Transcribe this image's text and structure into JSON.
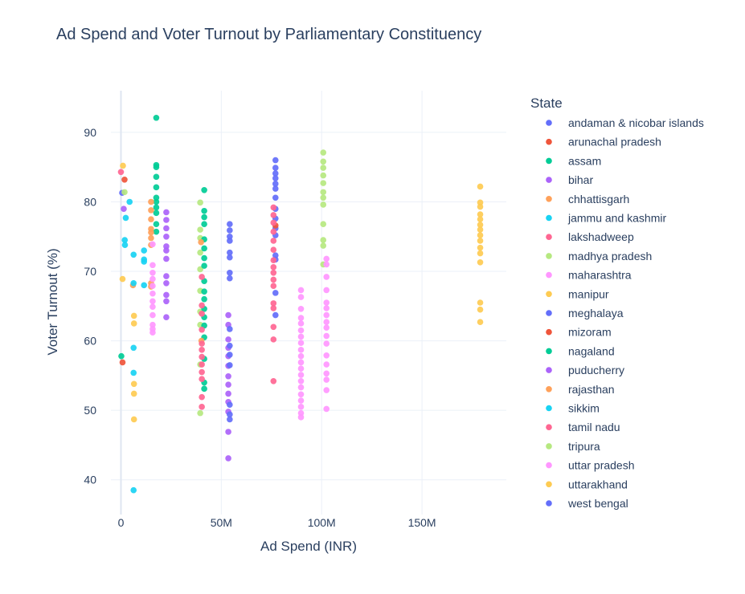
{
  "chart_data": {
    "type": "scatter",
    "title": "Ad Spend and Voter Turnout by Parliamentary Constituency",
    "xlabel": "Ad Spend (INR)",
    "ylabel": "Voter Turnout (%)",
    "xlim": [
      -5000000,
      192000000
    ],
    "ylim": [
      35,
      96
    ],
    "x_ticks": [
      {
        "value": 0,
        "label": "0"
      },
      {
        "value": 50000000,
        "label": "50M"
      },
      {
        "value": 100000000,
        "label": "100M"
      },
      {
        "value": 150000000,
        "label": "150M"
      }
    ],
    "y_ticks": [
      {
        "value": 40,
        "label": "40"
      },
      {
        "value": 50,
        "label": "50"
      },
      {
        "value": 60,
        "label": "60"
      },
      {
        "value": 70,
        "label": "70"
      },
      {
        "value": 80,
        "label": "80"
      },
      {
        "value": 90,
        "label": "90"
      }
    ],
    "grid": true,
    "legend_title": "State",
    "legend_position": "right",
    "series": [
      {
        "name": "andaman & nicobar islands",
        "color": "#636efa",
        "points": [
          [
            600000,
            81.3
          ]
        ]
      },
      {
        "name": "arunachal pradesh",
        "color": "#EF553B",
        "points": [
          [
            800000,
            56.9
          ],
          [
            1800000,
            83.2
          ]
        ]
      },
      {
        "name": "assam",
        "color": "#00cc96",
        "points": [
          [
            17600000,
            92.1
          ],
          [
            17600000,
            85.3
          ],
          [
            17600000,
            85.0
          ],
          [
            17600000,
            83.6
          ],
          [
            17600000,
            82.1
          ],
          [
            17600000,
            80.6
          ],
          [
            17600000,
            80.0
          ],
          [
            17600000,
            79.2
          ],
          [
            17600000,
            78.4
          ],
          [
            17600000,
            76.8
          ],
          [
            17600000,
            75.7
          ]
        ]
      },
      {
        "name": "bihar",
        "color": "#ab63fa",
        "points": [
          [
            1400000,
            79.0
          ],
          [
            22600000,
            78.5
          ],
          [
            22600000,
            77.4
          ],
          [
            22600000,
            76.2
          ],
          [
            22600000,
            75.0
          ],
          [
            22600000,
            73.6
          ],
          [
            22600000,
            73.0
          ],
          [
            22600000,
            71.8
          ],
          [
            22600000,
            69.3
          ],
          [
            22600000,
            68.3
          ],
          [
            22600000,
            66.6
          ],
          [
            22600000,
            65.7
          ],
          [
            22600000,
            63.4
          ]
        ]
      },
      {
        "name": "chhattisgarh",
        "color": "#FFA15A",
        "points": [
          [
            6000000,
            68.0
          ],
          [
            15000000,
            80.0
          ],
          [
            15000000,
            78.8
          ],
          [
            15000000,
            77.5
          ],
          [
            15000000,
            76.1
          ],
          [
            15000000,
            75.6
          ],
          [
            15000000,
            74.8
          ],
          [
            15000000,
            73.8
          ],
          [
            15000000,
            68.3
          ],
          [
            15000000,
            67.8
          ]
        ]
      },
      {
        "name": "jammu and kashmir",
        "color": "#19d3f3",
        "points": [
          [
            1900000,
            74.5
          ],
          [
            2400000,
            77.7
          ],
          [
            4300000,
            80.0
          ],
          [
            6300000,
            72.4
          ],
          [
            6300000,
            68.3
          ],
          [
            6300000,
            59.0
          ],
          [
            6300000,
            55.4
          ],
          [
            6300000,
            38.5
          ],
          [
            11500000,
            73.0
          ],
          [
            11500000,
            71.7
          ],
          [
            11500000,
            71.4
          ],
          [
            11500000,
            68.0
          ]
        ]
      },
      {
        "name": "lakshadweep",
        "color": "#FF6692",
        "points": [
          [
            0,
            84.3
          ]
        ]
      },
      {
        "name": "madhya pradesh",
        "color": "#B6E880",
        "points": [
          [
            1800000,
            81.4
          ],
          [
            39500000,
            79.9
          ],
          [
            39500000,
            76.0
          ],
          [
            39500000,
            74.8
          ],
          [
            39500000,
            72.7
          ],
          [
            39500000,
            70.3
          ],
          [
            39500000,
            67.2
          ],
          [
            39500000,
            64.2
          ],
          [
            39500000,
            62.3
          ],
          [
            39500000,
            56.6
          ],
          [
            39500000,
            49.6
          ]
        ]
      },
      {
        "name": "maharashtra",
        "color": "#FF97FF",
        "points": [
          [
            15800000,
            73.9
          ],
          [
            15800000,
            70.9
          ],
          [
            15800000,
            69.8
          ],
          [
            15800000,
            68.9
          ],
          [
            15800000,
            67.9
          ],
          [
            15800000,
            66.8
          ],
          [
            15800000,
            65.7
          ],
          [
            15800000,
            64.9
          ],
          [
            15800000,
            63.7
          ],
          [
            15800000,
            62.3
          ],
          [
            15800000,
            61.7
          ],
          [
            15800000,
            61.2
          ]
        ]
      },
      {
        "name": "manipur",
        "color": "#FECB52",
        "points": [
          [
            179000000,
            82.2
          ],
          [
            179000000,
            79.9
          ],
          [
            179000000,
            79.3
          ],
          [
            179000000,
            78.2
          ],
          [
            179000000,
            77.5
          ],
          [
            179000000,
            76.7
          ],
          [
            179000000,
            76.0
          ],
          [
            179000000,
            75.2
          ],
          [
            179000000,
            74.4
          ],
          [
            179000000,
            73.4
          ],
          [
            179000000,
            72.6
          ],
          [
            179000000,
            71.3
          ],
          [
            179000000,
            65.5
          ],
          [
            179000000,
            64.5
          ],
          [
            179000000,
            62.7
          ]
        ]
      },
      {
        "name": "meghalaya",
        "color": "#636efa",
        "points": [
          [
            77000000,
            86.0
          ],
          [
            77000000,
            84.9
          ],
          [
            77000000,
            84.1
          ],
          [
            77000000,
            83.4
          ],
          [
            77000000,
            82.6
          ],
          [
            77000000,
            81.9
          ],
          [
            77000000,
            80.6
          ],
          [
            77000000,
            79.0
          ],
          [
            77000000,
            77.6
          ],
          [
            77000000,
            76.2
          ],
          [
            77000000,
            75.2
          ],
          [
            77000000,
            72.3
          ],
          [
            77000000,
            71.7
          ],
          [
            77000000,
            66.9
          ],
          [
            77000000,
            63.7
          ]
        ]
      },
      {
        "name": "mizoram",
        "color": "#EF553B",
        "points": [
          [
            77000000,
            76.6
          ]
        ]
      },
      {
        "name": "nagaland",
        "color": "#00cc96",
        "points": [
          [
            200000,
            57.8
          ],
          [
            41500000,
            81.7
          ],
          [
            41500000,
            78.7
          ],
          [
            41500000,
            77.8
          ],
          [
            41500000,
            76.8
          ],
          [
            41500000,
            74.6
          ],
          [
            41500000,
            73.3
          ],
          [
            41500000,
            71.9
          ],
          [
            41500000,
            70.8
          ],
          [
            41500000,
            68.6
          ],
          [
            41500000,
            67.1
          ],
          [
            41500000,
            66.0
          ],
          [
            41500000,
            64.6
          ],
          [
            41500000,
            63.4
          ],
          [
            41500000,
            62.2
          ],
          [
            41500000,
            60.5
          ],
          [
            41500000,
            57.4
          ],
          [
            41500000,
            54.0
          ],
          [
            41500000,
            53.1
          ]
        ]
      },
      {
        "name": "puducherry",
        "color": "#ab63fa",
        "points": [
          [
            53500000,
            63.7
          ],
          [
            53500000,
            62.3
          ],
          [
            53500000,
            60.2
          ],
          [
            53500000,
            59.0
          ],
          [
            53500000,
            57.8
          ],
          [
            53500000,
            56.4
          ],
          [
            53500000,
            54.9
          ],
          [
            53500000,
            53.7
          ],
          [
            53500000,
            52.4
          ],
          [
            53500000,
            51.2
          ],
          [
            53500000,
            49.8
          ],
          [
            53500000,
            46.9
          ],
          [
            53500000,
            43.1
          ]
        ]
      },
      {
        "name": "rajasthan",
        "color": "#FFA15A",
        "points": [
          [
            39900000,
            74.2
          ],
          [
            40100000,
            60.0
          ]
        ]
      },
      {
        "name": "sikkim",
        "color": "#19d3f3",
        "points": [
          [
            2000000,
            73.8
          ]
        ]
      },
      {
        "name": "tamil nadu",
        "color": "#FF6692",
        "points": [
          [
            40300000,
            69.2
          ],
          [
            40300000,
            65.1
          ],
          [
            40300000,
            63.9
          ],
          [
            40300000,
            61.6
          ],
          [
            40300000,
            59.6
          ],
          [
            40300000,
            58.7
          ],
          [
            40300000,
            57.7
          ],
          [
            40300000,
            56.6
          ],
          [
            40300000,
            55.5
          ],
          [
            40300000,
            54.5
          ],
          [
            40300000,
            51.9
          ],
          [
            40300000,
            50.5
          ],
          [
            76000000,
            79.2
          ],
          [
            76000000,
            78.1
          ],
          [
            76000000,
            77.0
          ],
          [
            76000000,
            75.7
          ],
          [
            76000000,
            74.4
          ],
          [
            76000000,
            73.1
          ],
          [
            76000000,
            71.6
          ],
          [
            76000000,
            70.6
          ],
          [
            76000000,
            69.8
          ],
          [
            76000000,
            68.8
          ],
          [
            76000000,
            67.9
          ],
          [
            76000000,
            65.4
          ],
          [
            76000000,
            64.7
          ],
          [
            76000000,
            62.0
          ],
          [
            76000000,
            60.2
          ],
          [
            76000000,
            54.2
          ]
        ]
      },
      {
        "name": "tripura",
        "color": "#B6E880",
        "points": [
          [
            100800000,
            87.1
          ],
          [
            100800000,
            85.8
          ],
          [
            100800000,
            84.9
          ],
          [
            100800000,
            83.8
          ],
          [
            100800000,
            82.7
          ],
          [
            100800000,
            81.4
          ],
          [
            100800000,
            80.6
          ],
          [
            100800000,
            79.6
          ],
          [
            100800000,
            76.8
          ],
          [
            100800000,
            74.5
          ],
          [
            100800000,
            73.7
          ],
          [
            100800000,
            71.0
          ]
        ]
      },
      {
        "name": "uttar pradesh",
        "color": "#FF97FF",
        "points": [
          [
            89700000,
            67.3
          ],
          [
            89700000,
            66.3
          ],
          [
            89700000,
            64.6
          ],
          [
            89700000,
            63.3
          ],
          [
            89700000,
            62.5
          ],
          [
            89700000,
            61.5
          ],
          [
            89700000,
            60.6
          ],
          [
            89700000,
            59.7
          ],
          [
            89700000,
            58.7
          ],
          [
            89700000,
            57.8
          ],
          [
            89700000,
            56.9
          ],
          [
            89700000,
            56.0
          ],
          [
            89700000,
            55.1
          ],
          [
            89700000,
            54.2
          ],
          [
            89700000,
            53.3
          ],
          [
            89700000,
            52.3
          ],
          [
            89700000,
            51.4
          ],
          [
            89700000,
            50.5
          ],
          [
            89700000,
            49.6
          ],
          [
            89700000,
            49.0
          ],
          [
            102400000,
            71.8
          ],
          [
            102400000,
            71.0
          ],
          [
            102400000,
            69.2
          ],
          [
            102400000,
            67.3
          ],
          [
            102400000,
            65.5
          ],
          [
            102400000,
            64.7
          ],
          [
            102400000,
            63.7
          ],
          [
            102400000,
            62.7
          ],
          [
            102400000,
            61.9
          ],
          [
            102400000,
            60.7
          ],
          [
            102400000,
            59.6
          ],
          [
            102400000,
            57.9
          ],
          [
            102400000,
            56.6
          ],
          [
            102400000,
            55.3
          ],
          [
            102400000,
            54.4
          ],
          [
            102400000,
            52.9
          ],
          [
            102400000,
            50.2
          ]
        ]
      },
      {
        "name": "uttarakhand",
        "color": "#FECB52",
        "points": [
          [
            1000000,
            85.2
          ],
          [
            800000,
            68.9
          ],
          [
            6500000,
            63.6
          ],
          [
            6500000,
            62.5
          ],
          [
            6500000,
            53.8
          ],
          [
            6500000,
            52.4
          ],
          [
            6500000,
            48.7
          ]
        ]
      },
      {
        "name": "west bengal",
        "color": "#636efa",
        "points": [
          [
            54200000,
            76.8
          ],
          [
            54200000,
            75.9
          ],
          [
            54200000,
            75.0
          ],
          [
            54200000,
            74.4
          ],
          [
            54200000,
            72.7
          ],
          [
            54200000,
            72.0
          ],
          [
            54200000,
            69.8
          ],
          [
            54200000,
            69.0
          ],
          [
            54200000,
            61.7
          ],
          [
            54200000,
            59.3
          ],
          [
            54200000,
            58.0
          ],
          [
            54200000,
            56.5
          ],
          [
            54200000,
            50.8
          ],
          [
            54200000,
            49.4
          ],
          [
            54200000,
            48.7
          ]
        ]
      }
    ]
  }
}
